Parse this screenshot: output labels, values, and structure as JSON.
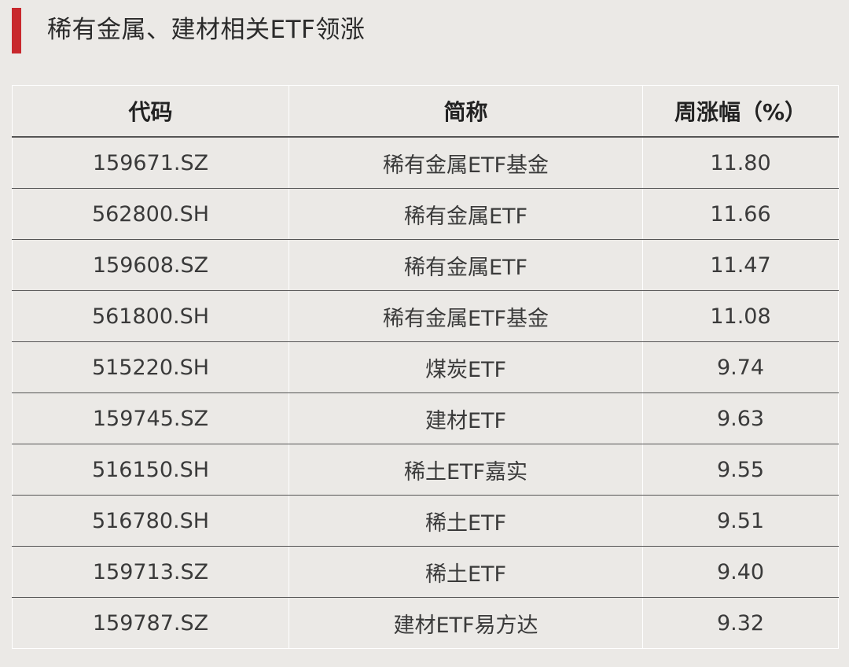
{
  "title": "稀有金属、建材相关ETF领涨",
  "table": {
    "headers": {
      "code": "代码",
      "name": "简称",
      "change": "周涨幅（%）"
    },
    "rows": [
      {
        "code": "159671.SZ",
        "name": "稀有金属ETF基金",
        "change": "11.80"
      },
      {
        "code": "562800.SH",
        "name": "稀有金属ETF",
        "change": "11.66"
      },
      {
        "code": "159608.SZ",
        "name": "稀有金属ETF",
        "change": "11.47"
      },
      {
        "code": "561800.SH",
        "name": "稀有金属ETF基金",
        "change": "11.08"
      },
      {
        "code": "515220.SH",
        "name": "煤炭ETF",
        "change": "9.74"
      },
      {
        "code": "159745.SZ",
        "name": "建材ETF",
        "change": "9.63"
      },
      {
        "code": "516150.SH",
        "name": "稀土ETF嘉实",
        "change": "9.55"
      },
      {
        "code": "516780.SH",
        "name": "稀土ETF",
        "change": "9.51"
      },
      {
        "code": "159713.SZ",
        "name": "稀土ETF",
        "change": "9.40"
      },
      {
        "code": "159787.SZ",
        "name": "建材ETF易方达",
        "change": "9.32"
      }
    ]
  },
  "colors": {
    "accent": "#c8282d",
    "background": "#ebe9e6",
    "row_divider": "#555555"
  }
}
